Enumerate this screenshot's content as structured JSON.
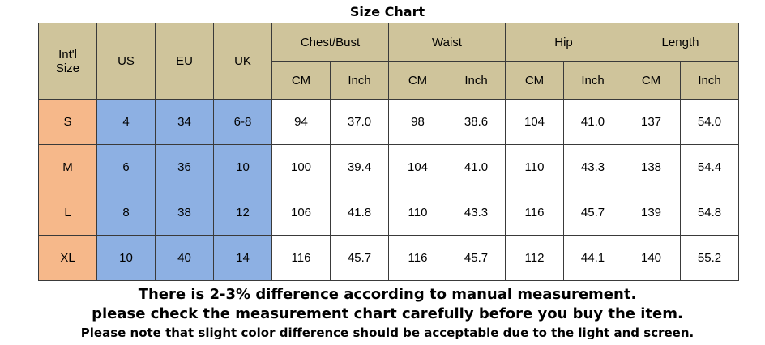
{
  "title": "Size Chart",
  "headers": {
    "intl": "Int'l\nSize",
    "us": "US",
    "eu": "EU",
    "uk": "UK",
    "chest": "Chest/Bust",
    "waist": "Waist",
    "hip": "Hip",
    "length": "Length",
    "units": [
      "CM",
      "Inch",
      "CM",
      "Inch",
      "CM",
      "Inch",
      "CM",
      "Inch"
    ]
  },
  "rows": [
    {
      "size": "S",
      "us": "4",
      "eu": "34",
      "uk": "6-8",
      "vals": [
        "94",
        "37.0",
        "98",
        "38.6",
        "104",
        "41.0",
        "137",
        "54.0"
      ]
    },
    {
      "size": "M",
      "us": "6",
      "eu": "36",
      "uk": "10",
      "vals": [
        "100",
        "39.4",
        "104",
        "41.0",
        "110",
        "43.3",
        "138",
        "54.4"
      ]
    },
    {
      "size": "L",
      "us": "8",
      "eu": "38",
      "uk": "12",
      "vals": [
        "106",
        "41.8",
        "110",
        "43.3",
        "116",
        "45.7",
        "139",
        "54.8"
      ]
    },
    {
      "size": "XL",
      "us": "10",
      "eu": "40",
      "uk": "14",
      "vals": [
        "116",
        "45.7",
        "116",
        "45.7",
        "112",
        "44.1",
        "140",
        "55.2"
      ]
    }
  ],
  "notes": [
    "There is 2-3% difference according to manual measurement.",
    "please check the measurement chart carefully before you buy the item.",
    "Please note that slight color difference should be acceptable due to the light and screen."
  ]
}
